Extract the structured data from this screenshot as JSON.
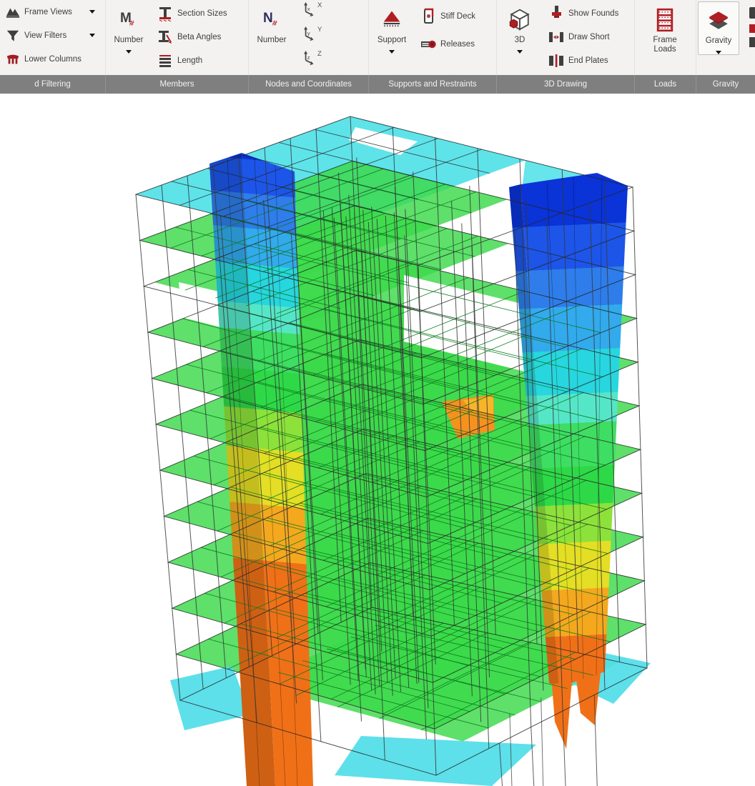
{
  "ribbon": {
    "groups": [
      {
        "label": "d Filtering",
        "items": [
          {
            "label": "Frame Views",
            "dropdown": true
          },
          {
            "label": "View Filters",
            "dropdown": true
          },
          {
            "label": "Lower Columns",
            "dropdown": false
          }
        ]
      },
      {
        "label": "Members",
        "big": {
          "label": "Number",
          "icon_letter": "M",
          "icon_hash": "#",
          "dropdown": true
        },
        "items": [
          {
            "label": "Section Sizes"
          },
          {
            "label": "Beta Angles"
          },
          {
            "label": "Length"
          }
        ]
      },
      {
        "label": "Nodes and Coordinates",
        "big": {
          "label": "Number",
          "icon_letter": "N",
          "icon_hash": "#",
          "dropdown": false
        },
        "axes": [
          {
            "big": "X",
            "small": "x"
          },
          {
            "big": "Y",
            "small": "y"
          },
          {
            "big": "Z",
            "small": "z"
          }
        ]
      },
      {
        "label": "Supports and Restraints",
        "big": {
          "label": "Support",
          "dropdown": true
        },
        "items": [
          {
            "label": "Stiff Deck"
          },
          {
            "label": "Releases"
          }
        ]
      },
      {
        "label": "3D Drawing",
        "big": {
          "label": "3D",
          "dropdown": true
        },
        "items": [
          {
            "label": "Show Founds"
          },
          {
            "label": "Draw Short"
          },
          {
            "label": "End Plates"
          }
        ]
      },
      {
        "label": "Loads",
        "big": {
          "label": "Frame Loads",
          "dropdown": false
        }
      },
      {
        "label": "Gravity",
        "big": {
          "label": "Gravity",
          "dropdown": true
        },
        "highlighted": true
      }
    ]
  },
  "colors": {
    "accent_red": "#b01e23",
    "icon_dark": "#3f3f3f",
    "ribbon_bg": "#f3f2f1",
    "group_bar": "#7f7f7f",
    "viewport_bg": "#ffffff"
  },
  "model": {
    "description": "3D building deflection contour view",
    "slab_green": "#3bd949",
    "slab_edge": "#0a7a1c",
    "roof_cyan": "#55e2e8",
    "ground_cyan": "#4fdde8",
    "wire": "#383838",
    "outline": "#262626",
    "orange": "#f07018",
    "patch_orange": "#f5921e",
    "patch_light": "#f8b52a",
    "left_wall_bands": [
      {
        "c": "#0a33d8",
        "to": 0.03
      },
      {
        "c": "#1d55e8",
        "to": 0.082
      },
      {
        "c": "#2e7dea",
        "to": 0.135
      },
      {
        "c": "#32aaec",
        "to": 0.19
      },
      {
        "c": "#27d6de",
        "to": 0.25
      },
      {
        "c": "#55e6c8",
        "to": 0.29
      },
      {
        "c": "#3ede62",
        "to": 0.35
      },
      {
        "c": "#2ed948",
        "to": 0.41
      },
      {
        "c": "#8ce23a",
        "to": 0.47
      },
      {
        "c": "#e4de24",
        "to": 0.555
      },
      {
        "c": "#f4a81e",
        "to": 0.64
      },
      {
        "c": "#f07018",
        "to": 1.0
      }
    ],
    "right_wall_bands": [
      {
        "c": "#0a33d8",
        "to": 0.085
      },
      {
        "c": "#1d55e8",
        "to": 0.16
      },
      {
        "c": "#2e7dea",
        "to": 0.225
      },
      {
        "c": "#32aaec",
        "to": 0.3
      },
      {
        "c": "#27d6de",
        "to": 0.375
      },
      {
        "c": "#55e6c8",
        "to": 0.425
      },
      {
        "c": "#3ede62",
        "to": 0.5
      },
      {
        "c": "#2ed948",
        "to": 0.565
      },
      {
        "c": "#8ce23a",
        "to": 0.63
      },
      {
        "c": "#e4de24",
        "to": 0.71
      },
      {
        "c": "#f4a81e",
        "to": 0.79
      },
      {
        "c": "#f07018",
        "to": 1.0
      }
    ]
  }
}
